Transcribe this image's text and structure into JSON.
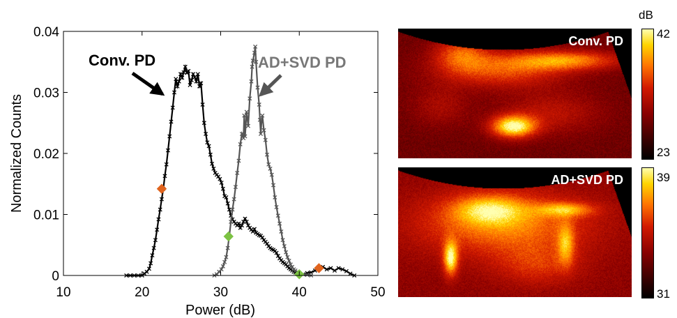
{
  "chart_data": {
    "type": "line",
    "xlabel": "Power (dB)",
    "ylabel": "Normalized Counts",
    "xlim": [
      10,
      50
    ],
    "ylim": [
      0,
      0.04
    ],
    "xticks": [
      "10",
      "20",
      "30",
      "40",
      "50"
    ],
    "yticks": [
      "0",
      "0.01",
      "0.02",
      "0.03",
      "0.04"
    ],
    "series": [
      {
        "name": "Conv. PD",
        "color": "#000000",
        "points": [
          [
            18.0,
            0.0
          ],
          [
            18.5,
            0.0
          ],
          [
            19.0,
            0.0
          ],
          [
            19.5,
            0.0
          ],
          [
            20.0,
            0.0
          ],
          [
            20.3,
            0.0003
          ],
          [
            20.6,
            0.0006
          ],
          [
            20.9,
            0.0011
          ],
          [
            21.1,
            0.002
          ],
          [
            21.3,
            0.0033
          ],
          [
            21.5,
            0.0045
          ],
          [
            21.7,
            0.0058
          ],
          [
            21.9,
            0.0075
          ],
          [
            22.1,
            0.0092
          ],
          [
            22.3,
            0.0108
          ],
          [
            22.5,
            0.0125
          ],
          [
            22.7,
            0.0142
          ],
          [
            22.9,
            0.0163
          ],
          [
            23.1,
            0.0182
          ],
          [
            23.3,
            0.0205
          ],
          [
            23.5,
            0.0228
          ],
          [
            23.7,
            0.0252
          ],
          [
            23.9,
            0.0275
          ],
          [
            24.1,
            0.03
          ],
          [
            24.3,
            0.0322
          ],
          [
            24.5,
            0.031
          ],
          [
            24.7,
            0.0318
          ],
          [
            24.9,
            0.033
          ],
          [
            25.1,
            0.0324
          ],
          [
            25.3,
            0.0333
          ],
          [
            25.5,
            0.0342
          ],
          [
            25.7,
            0.0332
          ],
          [
            25.9,
            0.0335
          ],
          [
            26.1,
            0.0312
          ],
          [
            26.3,
            0.032
          ],
          [
            26.5,
            0.033
          ],
          [
            26.7,
            0.0325
          ],
          [
            26.9,
            0.0318
          ],
          [
            27.1,
            0.033
          ],
          [
            27.3,
            0.031
          ],
          [
            27.5,
            0.0315
          ],
          [
            27.7,
            0.028
          ],
          [
            27.9,
            0.025
          ],
          [
            28.1,
            0.0232
          ],
          [
            28.3,
            0.0218
          ],
          [
            28.5,
            0.0212
          ],
          [
            28.7,
            0.0198
          ],
          [
            28.9,
            0.0183
          ],
          [
            29.1,
            0.0175
          ],
          [
            29.3,
            0.0168
          ],
          [
            29.5,
            0.0165
          ],
          [
            29.7,
            0.0162
          ],
          [
            29.9,
            0.0158
          ],
          [
            30.1,
            0.0152
          ],
          [
            30.3,
            0.0142
          ],
          [
            30.5,
            0.013
          ],
          [
            30.7,
            0.0128
          ],
          [
            30.9,
            0.0118
          ],
          [
            31.1,
            0.0108
          ],
          [
            31.3,
            0.0098
          ],
          [
            31.5,
            0.0092
          ],
          [
            31.7,
            0.0088
          ],
          [
            31.9,
            0.0085
          ],
          [
            32.1,
            0.0082
          ],
          [
            32.3,
            0.0085
          ],
          [
            32.5,
            0.0078
          ],
          [
            32.7,
            0.0082
          ],
          [
            32.9,
            0.0088
          ],
          [
            33.1,
            0.0093
          ],
          [
            33.3,
            0.0088
          ],
          [
            33.5,
            0.0082
          ],
          [
            33.7,
            0.0078
          ],
          [
            33.9,
            0.0075
          ],
          [
            34.1,
            0.0072
          ],
          [
            34.3,
            0.0076
          ],
          [
            34.5,
            0.007
          ],
          [
            34.7,
            0.0068
          ],
          [
            34.9,
            0.0066
          ],
          [
            35.1,
            0.0065
          ],
          [
            35.3,
            0.0062
          ],
          [
            35.5,
            0.0058
          ],
          [
            35.7,
            0.0055
          ],
          [
            35.9,
            0.0052
          ],
          [
            36.1,
            0.0048
          ],
          [
            36.3,
            0.0045
          ],
          [
            36.5,
            0.0043
          ],
          [
            36.7,
            0.0042
          ],
          [
            36.9,
            0.004
          ],
          [
            37.1,
            0.0037
          ],
          [
            37.3,
            0.0032
          ],
          [
            37.5,
            0.0028
          ],
          [
            37.7,
            0.0025
          ],
          [
            37.9,
            0.0022
          ],
          [
            38.1,
            0.002
          ],
          [
            38.3,
            0.0018
          ],
          [
            38.5,
            0.0015
          ],
          [
            38.7,
            0.0012
          ],
          [
            38.9,
            0.001
          ],
          [
            39.1,
            0.0008
          ],
          [
            39.3,
            0.0006
          ],
          [
            39.5,
            0.0005
          ],
          [
            40.0,
            0.0003
          ],
          [
            40.5,
            0.0002
          ],
          [
            41.0,
            0.0004
          ],
          [
            41.5,
            0.0005
          ],
          [
            42.0,
            0.0008
          ],
          [
            42.5,
            0.0012
          ],
          [
            43.0,
            0.0014
          ],
          [
            43.5,
            0.001
          ],
          [
            44.0,
            0.0012
          ],
          [
            44.5,
            0.0008
          ],
          [
            45.0,
            0.0012
          ],
          [
            45.5,
            0.001
          ],
          [
            46.0,
            0.0007
          ],
          [
            46.5,
            0.0003
          ],
          [
            47.0,
            0.0
          ]
        ]
      },
      {
        "name": "AD+SVD PD",
        "color": "#555555",
        "points": [
          [
            29.2,
            0.0
          ],
          [
            29.5,
            0.0002
          ],
          [
            29.8,
            0.0006
          ],
          [
            30.1,
            0.001
          ],
          [
            30.3,
            0.0015
          ],
          [
            30.5,
            0.0022
          ],
          [
            30.7,
            0.003
          ],
          [
            30.9,
            0.0045
          ],
          [
            31.1,
            0.0065
          ],
          [
            31.3,
            0.0088
          ],
          [
            31.5,
            0.0108
          ],
          [
            31.7,
            0.0125
          ],
          [
            31.9,
            0.0145
          ],
          [
            32.1,
            0.0168
          ],
          [
            32.3,
            0.0188
          ],
          [
            32.5,
            0.0215
          ],
          [
            32.7,
            0.0232
          ],
          [
            32.9,
            0.0225
          ],
          [
            33.0,
            0.0262
          ],
          [
            33.1,
            0.0228
          ],
          [
            33.3,
            0.0268
          ],
          [
            33.5,
            0.0245
          ],
          [
            33.7,
            0.029
          ],
          [
            33.9,
            0.0318
          ],
          [
            34.0,
            0.0342
          ],
          [
            34.1,
            0.0352
          ],
          [
            34.3,
            0.0365
          ],
          [
            34.4,
            0.0375
          ],
          [
            34.5,
            0.035
          ],
          [
            34.7,
            0.0308
          ],
          [
            34.9,
            0.028
          ],
          [
            35.0,
            0.0255
          ],
          [
            35.1,
            0.0232
          ],
          [
            35.2,
            0.0252
          ],
          [
            35.3,
            0.0262
          ],
          [
            35.5,
            0.0238
          ],
          [
            35.7,
            0.0222
          ],
          [
            35.9,
            0.0198
          ],
          [
            36.1,
            0.0182
          ],
          [
            36.3,
            0.0175
          ],
          [
            36.5,
            0.0165
          ],
          [
            36.7,
            0.0148
          ],
          [
            36.9,
            0.0128
          ],
          [
            37.1,
            0.0112
          ],
          [
            37.3,
            0.0098
          ],
          [
            37.5,
            0.0085
          ],
          [
            37.7,
            0.0072
          ],
          [
            37.9,
            0.0058
          ],
          [
            38.1,
            0.0048
          ],
          [
            38.3,
            0.0038
          ],
          [
            38.5,
            0.003
          ],
          [
            38.7,
            0.0024
          ],
          [
            38.9,
            0.0018
          ],
          [
            39.1,
            0.0014
          ],
          [
            39.3,
            0.001
          ],
          [
            39.5,
            0.0008
          ],
          [
            39.7,
            0.0005
          ],
          [
            40.0,
            0.0003
          ],
          [
            40.5,
            0.0002
          ],
          [
            41.0,
            0.0001
          ],
          [
            41.5,
            0.0
          ]
        ]
      }
    ],
    "markers": [
      {
        "x": 22.5,
        "y": 0.0142,
        "color": "#e0641e"
      },
      {
        "x": 31.0,
        "y": 0.0064,
        "color": "#7cc243"
      },
      {
        "x": 40.0,
        "y": 0.0002,
        "color": "#7cc243"
      },
      {
        "x": 42.5,
        "y": 0.0012,
        "color": "#e0641e"
      }
    ],
    "annotations": [
      {
        "text": "Conv. PD",
        "color": "#000000"
      },
      {
        "text": "AD+SVD PD",
        "color": "#777777"
      }
    ]
  },
  "images": {
    "top": {
      "label": "Conv. PD",
      "colorbar_unit": "dB",
      "colorbar_max": "42",
      "colorbar_min": "23"
    },
    "bottom": {
      "label": "AD+SVD PD",
      "colorbar_max": "39",
      "colorbar_min": "31"
    }
  }
}
